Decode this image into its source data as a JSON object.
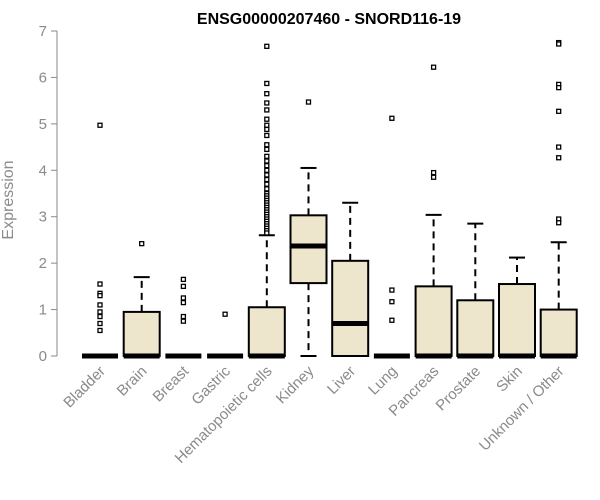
{
  "chart_data": {
    "type": "boxplot",
    "title": "ENSG00000207460 - SNORD116-19",
    "ylabel": "Expression",
    "xlabel": "",
    "ylim": [
      0,
      7
    ],
    "yticks": [
      0,
      1,
      2,
      3,
      4,
      5,
      6,
      7
    ],
    "box_color": "#ede6cc",
    "categories": [
      "Bladder",
      "Brain",
      "Breast",
      "Gastric",
      "Hematopoietic cells",
      "Kidney",
      "Liver",
      "Lung",
      "Pancreas",
      "Prostate",
      "Skin",
      "Unknown / Other"
    ],
    "boxes": [
      {
        "q1": 0,
        "median": 0,
        "q3": 0,
        "whisker_low": 0,
        "whisker_high": 0,
        "outliers": [
          4.97,
          1.55,
          1.35,
          1.3,
          1.1,
          0.95,
          0.85,
          0.7,
          0.55
        ]
      },
      {
        "q1": 0,
        "median": 0,
        "q3": 0.95,
        "whisker_low": 0,
        "whisker_high": 1.7,
        "outliers": [
          2.42
        ]
      },
      {
        "q1": 0,
        "median": 0,
        "q3": 0,
        "whisker_low": 0,
        "whisker_high": 0,
        "outliers": [
          1.65,
          1.5,
          1.25,
          1.15,
          0.85,
          0.75
        ]
      },
      {
        "q1": 0,
        "median": 0,
        "q3": 0,
        "whisker_low": 0,
        "whisker_high": 0,
        "outliers": [
          0.9
        ]
      },
      {
        "q1": 0,
        "median": 0,
        "q3": 1.05,
        "whisker_low": 0,
        "whisker_high": 2.6,
        "outliers": [
          6.67,
          5.87,
          5.65,
          5.45,
          5.3,
          5.1,
          4.97,
          4.88,
          4.75,
          4.55,
          4.45,
          4.3,
          4.2,
          4.1,
          4.0,
          3.9,
          3.8,
          3.7,
          3.6,
          3.5,
          3.45,
          3.4,
          3.35,
          3.3,
          3.25,
          3.2,
          3.15,
          3.1,
          3.05,
          3.0,
          2.95,
          2.9,
          2.85,
          2.8,
          2.75,
          2.7,
          2.65
        ]
      },
      {
        "q1": 1.57,
        "median": 2.37,
        "q3": 3.03,
        "whisker_low": 0,
        "whisker_high": 4.05,
        "outliers": [
          5.47
        ]
      },
      {
        "q1": 0,
        "median": 0.7,
        "q3": 2.05,
        "whisker_low": 0,
        "whisker_high": 3.3,
        "outliers": []
      },
      {
        "q1": 0,
        "median": 0,
        "q3": 0,
        "whisker_low": 0,
        "whisker_high": 0,
        "outliers": [
          5.12,
          1.42,
          1.17,
          0.77
        ]
      },
      {
        "q1": 0,
        "median": 0,
        "q3": 1.5,
        "whisker_low": 0,
        "whisker_high": 3.04,
        "outliers": [
          6.22,
          3.95,
          3.85
        ]
      },
      {
        "q1": 0,
        "median": 0,
        "q3": 1.2,
        "whisker_low": 0,
        "whisker_high": 2.85,
        "outliers": []
      },
      {
        "q1": 0,
        "median": 0,
        "q3": 1.55,
        "whisker_low": 0,
        "whisker_high": 2.12,
        "outliers": []
      },
      {
        "q1": 0,
        "median": 0,
        "q3": 1.0,
        "whisker_low": 0,
        "whisker_high": 2.45,
        "outliers": [
          6.75,
          6.72,
          5.85,
          5.78,
          5.27,
          4.5,
          4.27,
          2.95,
          2.87
        ]
      }
    ]
  }
}
